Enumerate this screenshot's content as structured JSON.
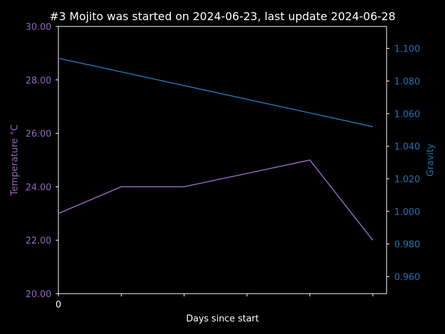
{
  "chart_data": {
    "type": "line",
    "title": "#3 Mojito was started on 2024-06-23, last update 2024-06-28",
    "xlabel": "Days since start",
    "x": [
      0,
      1,
      2,
      3,
      4,
      5
    ],
    "x_tick_labels": [
      "0",
      "",
      "",
      "",
      "",
      ""
    ],
    "xlim": [
      0,
      5.22
    ],
    "grid": false,
    "left_axis": {
      "label": "Temperature °C",
      "color": "#9467bd",
      "ylim": [
        20,
        30
      ],
      "ticks": [
        "20.00",
        "22.00",
        "24.00",
        "26.00",
        "28.00",
        "30.00"
      ],
      "tick_values": [
        20,
        22,
        24,
        26,
        28,
        30
      ]
    },
    "right_axis": {
      "label": "Gravity",
      "color": "#1f77b4",
      "ylim": [
        0.9495,
        1.1135
      ],
      "ticks": [
        "0.960",
        "0.980",
        "1.000",
        "1.020",
        "1.040",
        "1.060",
        "1.080",
        "1.100"
      ],
      "tick_values": [
        0.96,
        0.98,
        1.0,
        1.02,
        1.04,
        1.06,
        1.08,
        1.1
      ]
    },
    "series": [
      {
        "axis": "left",
        "color": "#9467bd",
        "values": [
          23,
          24,
          24,
          24.5,
          25,
          22
        ]
      },
      {
        "axis": "right",
        "color": "#1f77b4",
        "values": [
          1.094,
          1.0856,
          1.0772,
          1.0688,
          1.0604,
          1.052
        ]
      }
    ]
  }
}
